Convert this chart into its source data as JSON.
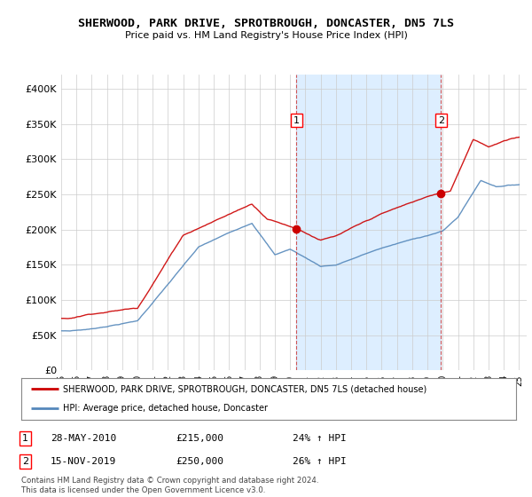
{
  "title": "SHERWOOD, PARK DRIVE, SPROTBROUGH, DONCASTER, DN5 7LS",
  "subtitle": "Price paid vs. HM Land Registry's House Price Index (HPI)",
  "ylim": [
    0,
    420000
  ],
  "yticks": [
    0,
    50000,
    100000,
    150000,
    200000,
    250000,
    300000,
    350000,
    400000
  ],
  "ytick_labels": [
    "£0",
    "£50K",
    "£100K",
    "£150K",
    "£200K",
    "£250K",
    "£300K",
    "£350K",
    "£400K"
  ],
  "x_start_year": 1995,
  "x_end_year": 2025,
  "red_color": "#cc0000",
  "blue_color": "#5588bb",
  "shade_color": "#ddeeff",
  "dashed_color": "#cc4444",
  "marker1_x": 2010.42,
  "marker2_x": 2019.88,
  "sale1_price": 215000,
  "sale1_pct": "24%",
  "sale2_price": 250000,
  "sale2_pct": "26%",
  "sale1_date": "28-MAY-2010",
  "sale2_date": "15-NOV-2019",
  "legend_red_label": "SHERWOOD, PARK DRIVE, SPROTBROUGH, DONCASTER, DN5 7LS (detached house)",
  "legend_blue_label": "HPI: Average price, detached house, Doncaster",
  "footnote": "Contains HM Land Registry data © Crown copyright and database right 2024.\nThis data is licensed under the Open Government Licence v3.0.",
  "background_color": "#ffffff",
  "plot_bg_color": "#ffffff"
}
